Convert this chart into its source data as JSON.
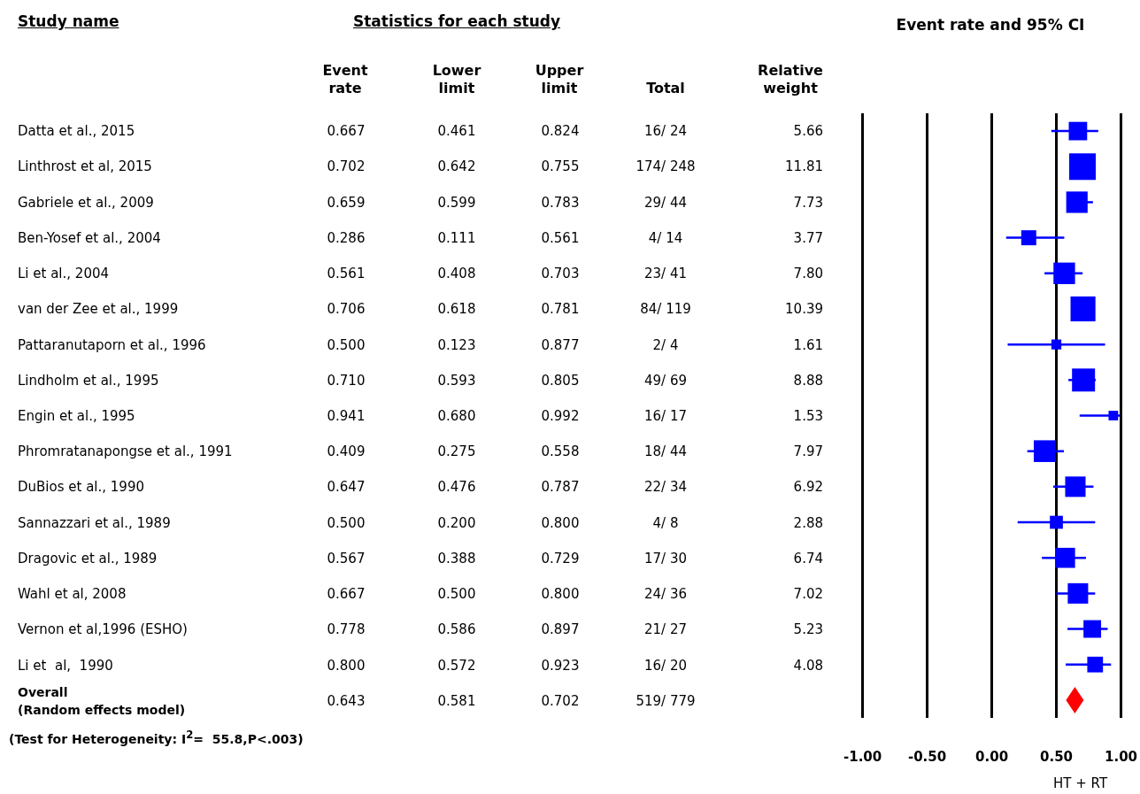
{
  "chart_data": [
    {
      "type": "other",
      "annotations": [
        "Study name",
        "Statistics for each study",
        "Event rate",
        "Lower limit",
        "Upper limit",
        "Total",
        "Relative weight",
        "Datta et al., 2015",
        "0.667",
        "0.461",
        "0.824",
        "16/ 24",
        "5.66",
        "Linthrost et al, 2015",
        "0.702",
        "0.642",
        "0.755",
        "174/ 248",
        "11.81",
        "Gabriele et al., 2009",
        "0.659",
        "0.599",
        "0.783",
        "29/ 44",
        "7.73",
        "Ben-Yosef et al., 2004",
        "0.286",
        "0.111",
        "0.561",
        "4/ 14",
        "3.77",
        "Li et al., 2004",
        "0.561",
        "0.408",
        "0.703",
        "23/ 41",
        "7.80",
        "van der Zee et al., 1999",
        "0.706",
        "0.618",
        "0.781",
        "84/ 119",
        "10.39",
        "Pattaranutaporn et al., 1996",
        "0.500",
        "0.123",
        "0.877",
        "2/ 4",
        "1.61",
        "Lindholm et al., 1995",
        "0.710",
        "0.593",
        "0.805",
        "49/ 69",
        "8.88",
        "Engin et al., 1995",
        "0.941",
        "0.680",
        "0.992",
        "16/ 17",
        "1.53",
        "Phromratanapongse et al., 1991",
        "0.409",
        "0.275",
        "0.558",
        "18/ 44",
        "7.97",
        "DuBios et al., 1990",
        "0.647",
        "0.476",
        "0.787",
        "22/ 34",
        "6.92",
        "Sannazzari et al., 1989",
        "0.500",
        "0.200",
        "0.800",
        "4/ 8",
        "2.88",
        "Dragovic et al., 1989",
        "0.567",
        "0.388",
        "0.729",
        "17/ 30",
        "6.74",
        "Wahl et al, 2008",
        "0.667",
        "0.500",
        "0.800",
        "24/ 36",
        "7.02",
        "Vernon et al,1996 (ESHO)",
        "0.778",
        "0.586",
        "0.897",
        "21/ 27",
        "5.23",
        "Li et  al,  1990",
        "0.800",
        "0.572",
        "0.923",
        "16/ 20",
        "4.08",
        "Overall\n(Random effects model)",
        "0.643",
        "0.581",
        "0.702",
        "519/ 779",
        "(Test for Heterogeneity: I$^{2}$=  55.8,P<.003)"
      ]
    },
    {
      "type": "scatter",
      "orientation": "horizontal",
      "title": "Event rate and 95% CI",
      "xlabel": "HT + RT",
      "categories": [
        null,
        null,
        null,
        null,
        null,
        null,
        null,
        null,
        null,
        null,
        null,
        null,
        null,
        null,
        null,
        null,
        null
      ],
      "series": [
        {
          "type": "bubble",
          "marker": "square",
          "color": "#0000ff",
          "values": [
            0.667,
            0.702,
            0.659,
            0.286,
            0.561,
            0.706,
            0.5,
            0.71,
            0.941,
            0.409,
            0.647,
            0.5,
            0.567,
            0.667,
            0.778,
            0.8,
            null
          ],
          "errors": [
            [
              0.461,
              0.824
            ],
            null,
            [
              0.599,
              0.783
            ],
            [
              0.111,
              0.561
            ],
            [
              0.408,
              0.703
            ],
            [
              0.618,
              0.781
            ],
            [
              0.123,
              0.877
            ],
            [
              0.593,
              0.805
            ],
            [
              0.68,
              0.992
            ],
            [
              0.275,
              0.558
            ],
            [
              0.476,
              0.787
            ],
            [
              0.2,
              0.8
            ],
            [
              0.388,
              0.729
            ],
            [
              0.5,
              0.8
            ],
            [
              0.586,
              0.897
            ],
            [
              0.572,
              0.923
            ],
            null
          ],
          "sizes": [
            0.48,
            1,
            0.65,
            0.32,
            0.66,
            0.88,
            0.14,
            0.75,
            0.13,
            0.67,
            0.59,
            0.24,
            0.57,
            0.59,
            0.44,
            0.35,
            null
          ]
        },
        {
          "type": "scatter",
          "marker": "diamond",
          "color": "#ff0000",
          "values": [
            null,
            null,
            null,
            null,
            null,
            null,
            null,
            null,
            null,
            null,
            null,
            null,
            null,
            null,
            null,
            null,
            0.643
          ]
        }
      ],
      "xlim": [
        -1,
        1
      ],
      "xticks": [
        {
          "value": -1,
          "label": "-1.00"
        },
        {
          "value": -0.5,
          "label": "-0.50"
        },
        {
          "value": 0,
          "label": "0.00"
        },
        {
          "value": 0.5,
          "label": "0.50"
        },
        {
          "value": 1,
          "label": "1.00"
        }
      ],
      "grid": "x"
    }
  ]
}
